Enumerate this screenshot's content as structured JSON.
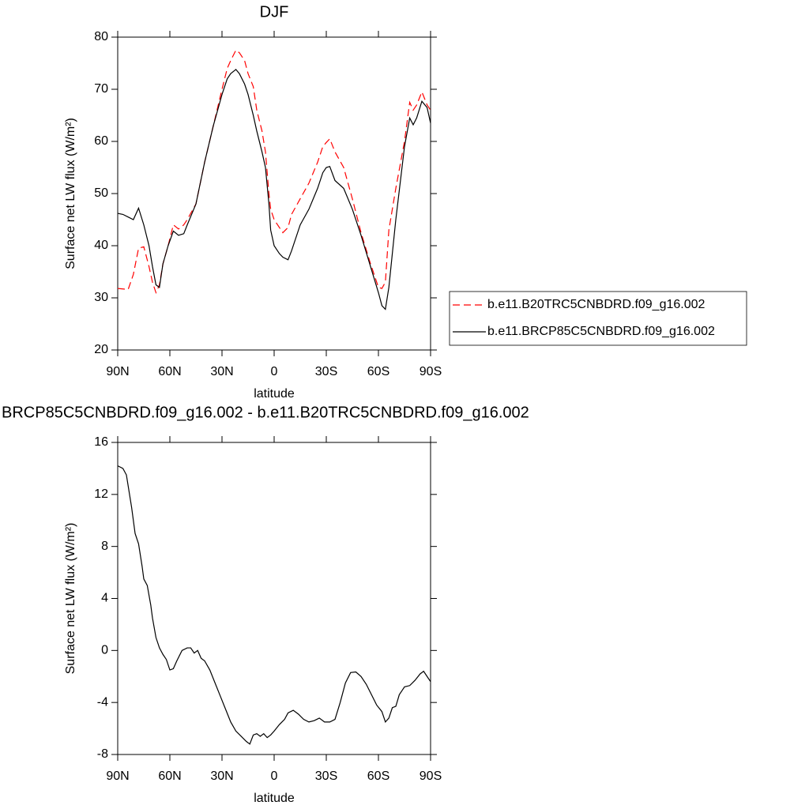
{
  "chart_data": [
    {
      "type": "line",
      "title": "DJF",
      "x_label": "latitude",
      "y_label": "Surface net LW flux (W/m²)",
      "xlim": [
        90,
        -90
      ],
      "ylim": [
        20,
        80
      ],
      "xticks": [
        {
          "value": 90,
          "label": "90N"
        },
        {
          "value": 60,
          "label": "60N"
        },
        {
          "value": 30,
          "label": "30N"
        },
        0,
        {
          "value": -30,
          "label": "30S"
        },
        {
          "value": -60,
          "label": "60S"
        },
        {
          "value": -90,
          "label": "90S"
        }
      ],
      "yticks": [
        20,
        30,
        40,
        50,
        60,
        70,
        80
      ],
      "legend": "right",
      "x": [
        90,
        87,
        84,
        81,
        78,
        75,
        72,
        70,
        68,
        66,
        64,
        61,
        58,
        55,
        52,
        50,
        45,
        40,
        35,
        30,
        27,
        25,
        22,
        20,
        17,
        15,
        12,
        10,
        7,
        5,
        3,
        2,
        0,
        -3,
        -5,
        -8,
        -10,
        -15,
        -20,
        -25,
        -28,
        -30,
        -32,
        -35,
        -40,
        -45,
        -50,
        -55,
        -60,
        -62,
        -64,
        -66,
        -70,
        -75,
        -78,
        -80,
        -82,
        -85,
        -88,
        -90
      ],
      "series": [
        {
          "name": "b.e11.B20TRC5CNBDRD.f09_g16.002",
          "color": "#ff0000",
          "style": "dashed",
          "values": [
            31.8,
            31.7,
            31.6,
            34.5,
            39.5,
            39.8,
            36,
            33,
            31,
            32.5,
            36.5,
            40,
            44,
            43.2,
            44,
            45,
            48,
            56,
            63,
            70,
            74,
            75.5,
            77.5,
            77,
            75.5,
            73,
            70.5,
            66,
            62,
            58,
            50,
            47,
            45,
            43.5,
            42.5,
            43.5,
            46,
            49,
            52,
            56,
            59,
            59.8,
            60.5,
            58,
            55,
            49,
            42.5,
            37,
            32,
            31.8,
            33,
            43,
            51,
            60,
            67.5,
            66,
            67,
            69.5,
            67,
            66
          ]
        },
        {
          "name": "b.e11.BRCP85C5CNBDRD.f09_g16.002",
          "color": "#000000",
          "style": "solid",
          "values": [
            46.2,
            46,
            45.5,
            45,
            47.2,
            44,
            40,
            36,
            32.5,
            32,
            36.5,
            40,
            42.8,
            42,
            42.3,
            44,
            48,
            56,
            63,
            69,
            72,
            73,
            73.8,
            73,
            71,
            69,
            65,
            62,
            58,
            55,
            48,
            43,
            40,
            38.5,
            37.8,
            37.3,
            39,
            44,
            47,
            51,
            54,
            55,
            55.2,
            52.5,
            51,
            47,
            42,
            36.5,
            31,
            28.5,
            27.8,
            32,
            45,
            59,
            64.5,
            63.2,
            64.5,
            67.7,
            66.5,
            63.5
          ]
        }
      ]
    },
    {
      "type": "line",
      "title": "BRCP85C5CNBDRD.f09_g16.002 - b.e11.B20TRC5CNBDRD.f09_g16.002",
      "x_label": "latitude",
      "y_label": "Surface net LW flux (W/m²)",
      "xlim": [
        90,
        -90
      ],
      "ylim": [
        -8,
        16
      ],
      "xticks": [
        {
          "value": 90,
          "label": "90N"
        },
        {
          "value": 60,
          "label": "60N"
        },
        {
          "value": 30,
          "label": "30N"
        },
        0,
        {
          "value": -30,
          "label": "30S"
        },
        {
          "value": -60,
          "label": "60S"
        },
        {
          "value": -90,
          "label": "90S"
        }
      ],
      "yticks": [
        -8,
        -4,
        0,
        4,
        8,
        12,
        16
      ],
      "x": [
        90,
        87,
        85,
        82,
        80,
        78,
        76,
        75,
        73,
        71,
        70,
        68,
        66,
        64,
        62,
        60,
        58,
        56,
        53,
        50,
        48,
        46,
        44,
        42,
        40,
        37,
        34,
        31,
        28,
        25,
        22,
        19,
        16,
        14,
        12,
        10,
        8,
        6,
        4,
        2,
        0,
        -3,
        -6,
        -8,
        -11,
        -14,
        -17,
        -20,
        -23,
        -26,
        -29,
        -32,
        -35,
        -38,
        -41,
        -44,
        -47,
        -50,
        -53,
        -56,
        -59,
        -62,
        -64,
        -66,
        -68,
        -70,
        -72,
        -75,
        -78,
        -81,
        -84,
        -86,
        -88,
        -90
      ],
      "series": [
        {
          "color": "#000000",
          "style": "solid",
          "values": [
            14.2,
            14,
            13.5,
            11,
            9,
            8.2,
            6.5,
            5.5,
            5,
            3.5,
            2.5,
            1,
            0.2,
            -0.3,
            -0.7,
            -1.5,
            -1.4,
            -0.8,
            0,
            0.2,
            0.2,
            -0.2,
            0,
            -0.6,
            -0.8,
            -1.5,
            -2.5,
            -3.5,
            -4.5,
            -5.5,
            -6.2,
            -6.6,
            -7,
            -7.2,
            -6.5,
            -6.4,
            -6.6,
            -6.4,
            -6.7,
            -6.5,
            -6.2,
            -5.7,
            -5.3,
            -4.8,
            -4.6,
            -4.9,
            -5.3,
            -5.5,
            -5.4,
            -5.2,
            -5.5,
            -5.5,
            -5.3,
            -4,
            -2.5,
            -1.7,
            -1.65,
            -2,
            -2.6,
            -3.4,
            -4.2,
            -4.7,
            -5.5,
            -5.2,
            -4.4,
            -4.3,
            -3.4,
            -2.8,
            -2.7,
            -2.3,
            -1.8,
            -1.6,
            -2,
            -2.4
          ]
        }
      ]
    }
  ]
}
